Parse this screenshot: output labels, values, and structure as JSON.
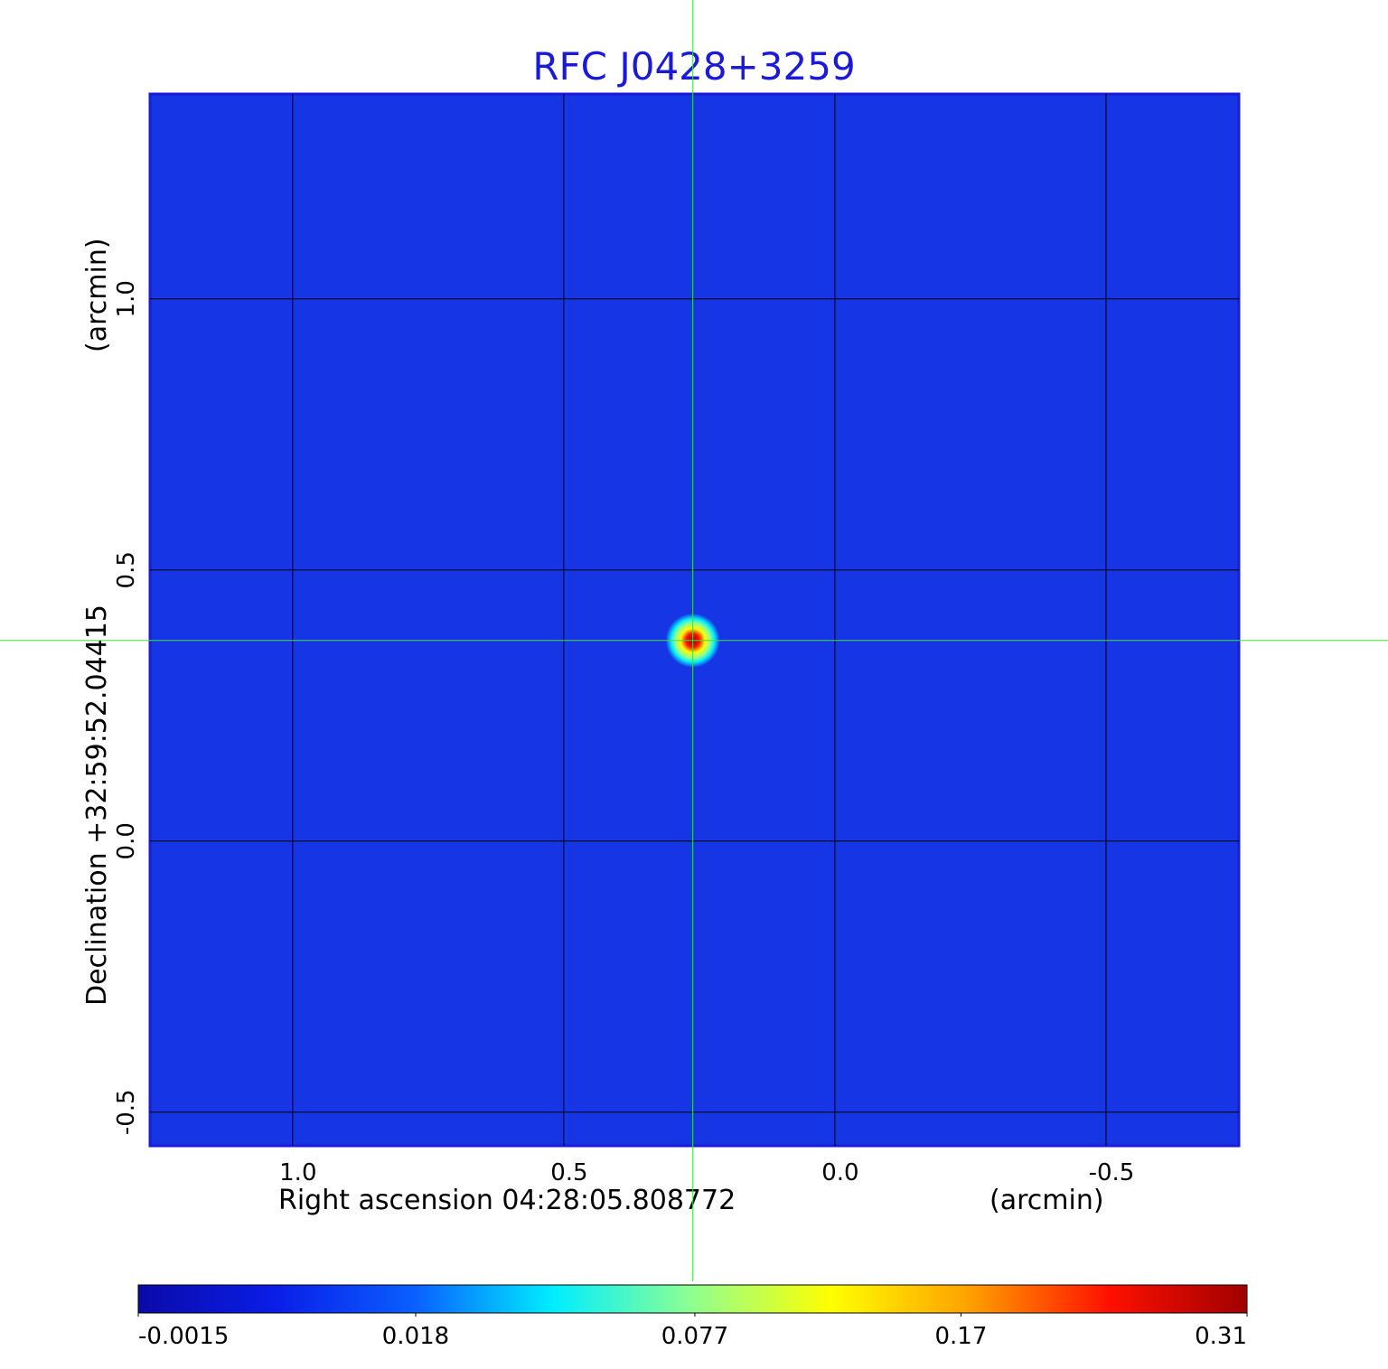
{
  "chart_data": {
    "type": "image",
    "title": "RFC J0428+3259",
    "x_label": "Right ascension  04:28:05.808772",
    "x_unit": "(arcmin)",
    "y_label": "Declination  +32:59:52.04415",
    "y_unit": "(arcmin)",
    "xlim": [
      1.263,
      -0.745
    ],
    "ylim": [
      -0.562,
      1.378
    ],
    "xticks": [
      {
        "value": 1,
        "label": "1.0"
      },
      0.5,
      {
        "value": 0,
        "label": "0.0"
      },
      -0.5
    ],
    "yticks": [
      {
        "value": -0.5,
        "label": "-0.5"
      },
      {
        "value": 0,
        "label": "0.0"
      },
      0.5,
      {
        "value": 1,
        "label": "1.0"
      }
    ],
    "grid": true,
    "background_color": "#1636e6",
    "crosshair": {
      "x": 0.262,
      "y": 0.37,
      "color": "#40e040"
    },
    "colorbar": {
      "scale": "sqrt",
      "lim": [
        -0.0015,
        0.31
      ],
      "ticks": [
        -0.0015,
        0.018,
        0.077,
        0.17,
        0.31
      ],
      "colormap": [
        "#0a0aa8",
        "#0a1ee8",
        "#0a60ff",
        "#00eeff",
        "#90ff90",
        "#ffff00",
        "#ffa000",
        "#ff1000",
        "#a00000"
      ]
    }
  }
}
